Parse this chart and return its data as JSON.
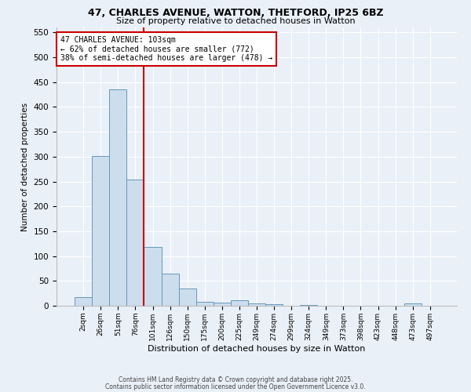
{
  "title_line1": "47, CHARLES AVENUE, WATTON, THETFORD, IP25 6BZ",
  "title_line2": "Size of property relative to detached houses in Watton",
  "xlabel": "Distribution of detached houses by size in Watton",
  "ylabel": "Number of detached properties",
  "bar_labels": [
    "2sqm",
    "26sqm",
    "51sqm",
    "76sqm",
    "101sqm",
    "126sqm",
    "150sqm",
    "175sqm",
    "200sqm",
    "225sqm",
    "249sqm",
    "274sqm",
    "299sqm",
    "324sqm",
    "349sqm",
    "373sqm",
    "398sqm",
    "423sqm",
    "448sqm",
    "473sqm",
    "497sqm"
  ],
  "bar_values": [
    18,
    302,
    435,
    254,
    119,
    64,
    35,
    8,
    7,
    11,
    5,
    3,
    0,
    2,
    0,
    0,
    0,
    0,
    0,
    5,
    0
  ],
  "bar_color": "#ccdded",
  "bar_edge_color": "#6699bb",
  "vline_color": "#cc0000",
  "annotation_text": "47 CHARLES AVENUE: 103sqm\n← 62% of detached houses are smaller (772)\n38% of semi-detached houses are larger (478) →",
  "ylim": [
    0,
    560
  ],
  "yticks": [
    0,
    50,
    100,
    150,
    200,
    250,
    300,
    350,
    400,
    450,
    500,
    550
  ],
  "background_color": "#eaf0f8",
  "grid_color": "#ffffff",
  "footer_line1": "Contains HM Land Registry data © Crown copyright and database right 2025.",
  "footer_line2": "Contains public sector information licensed under the Open Government Licence v3.0."
}
